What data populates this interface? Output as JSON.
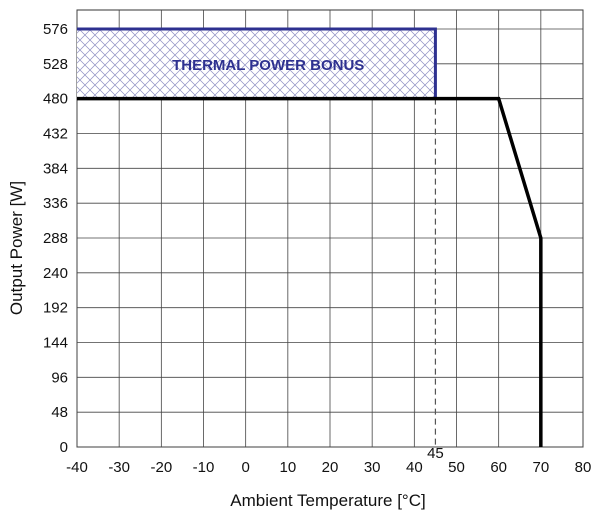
{
  "chart_data": {
    "type": "line",
    "xlabel": "Ambient Temperature [°C]",
    "ylabel": "Output Power [W]",
    "xlim": [
      -40,
      80
    ],
    "ylim": [
      0,
      576
    ],
    "x_ticks": [
      -40,
      -30,
      -20,
      -10,
      0,
      10,
      20,
      30,
      40,
      50,
      60,
      70,
      80
    ],
    "y_ticks": [
      0,
      48,
      96,
      144,
      192,
      240,
      288,
      336,
      384,
      432,
      480,
      528,
      576
    ],
    "grid": true,
    "series": [
      {
        "x": [
          -40,
          60,
          70,
          70
        ],
        "y": [
          480,
          480,
          288,
          0
        ],
        "color": "#000000"
      }
    ],
    "annotations": [
      {
        "type": "hatched_region",
        "label": "THERMAL POWER BONUS",
        "x_range": [
          -40,
          45
        ],
        "y_range": [
          480,
          576
        ],
        "color": "#2e3190"
      },
      {
        "type": "vertical_dashed_line",
        "x": 45,
        "label": "45",
        "y_range": [
          0,
          480
        ],
        "color": "#555555"
      }
    ]
  }
}
